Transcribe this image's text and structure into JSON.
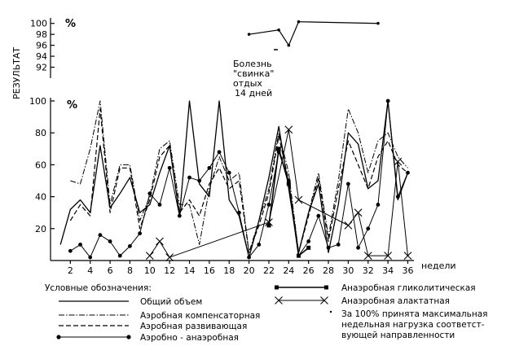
{
  "chart_data": [
    {
      "type": "line",
      "panel": "result",
      "ylabel": "РЕЗУЛЬТАТ",
      "unit": "%",
      "yticks": [
        92,
        94,
        96,
        98,
        100
      ],
      "ylim": [
        90,
        101
      ],
      "x": [
        20,
        23,
        24,
        25,
        33
      ],
      "values": [
        98,
        98.8,
        96,
        100.3,
        100
      ],
      "annotation": [
        "Болезнь",
        "\"свинка\"",
        "отдых",
        "14 дней"
      ]
    },
    {
      "type": "line",
      "panel": "load",
      "unit": "%",
      "xlabel": "недели",
      "xticks": [
        2,
        4,
        6,
        8,
        10,
        12,
        14,
        16,
        18,
        20,
        22,
        24,
        26,
        28,
        30,
        32,
        34,
        36
      ],
      "yticks": [
        20,
        40,
        60,
        80,
        100
      ],
      "xlim": [
        0,
        37
      ],
      "ylim": [
        0,
        102
      ],
      "series": [
        {
          "name": "Общий объем",
          "style": "solid",
          "x": [
            1,
            2,
            3,
            4,
            5,
            6,
            7,
            8,
            9,
            10,
            11,
            12,
            13,
            14,
            15,
            16,
            17,
            18,
            19,
            20,
            21,
            22,
            23,
            24,
            25,
            26,
            27,
            28,
            29,
            30,
            31,
            32,
            33,
            34,
            35,
            36
          ],
          "values": [
            10,
            32,
            38,
            30,
            72,
            33,
            42,
            52,
            30,
            35,
            55,
            72,
            28,
            100,
            48,
            40,
            100,
            38,
            28,
            2,
            25,
            52,
            84,
            45,
            5,
            30,
            48,
            5,
            35,
            80,
            73,
            45,
            50,
            100,
            38,
            55
          ]
        },
        {
          "name": "Аэробная компенсаторная",
          "style": "dashdot",
          "x": [
            1,
            2,
            3,
            4,
            5,
            6,
            7,
            8,
            9,
            10,
            11,
            12,
            13,
            14,
            15,
            16,
            17,
            18,
            19,
            20,
            21,
            22,
            23,
            24,
            25,
            26,
            27,
            28,
            29,
            30,
            31,
            32,
            33,
            34,
            35,
            36
          ],
          "values": [
            null,
            50,
            48,
            70,
            100,
            35,
            60,
            60,
            25,
            40,
            70,
            75,
            35,
            35,
            10,
            45,
            65,
            50,
            55,
            5,
            25,
            45,
            80,
            55,
            5,
            30,
            55,
            15,
            50,
            95,
            80,
            55,
            75,
            80,
            65,
            58
          ]
        },
        {
          "name": "Аэробная развивающая",
          "style": "dashed",
          "x": [
            1,
            2,
            3,
            4,
            5,
            6,
            7,
            8,
            9,
            10,
            11,
            12,
            13,
            14,
            15,
            16,
            17,
            18,
            19,
            20,
            21,
            22,
            23,
            24,
            25,
            26,
            27,
            28,
            29,
            30,
            31,
            32,
            33,
            34,
            35,
            36
          ],
          "values": [
            null,
            25,
            35,
            28,
            95,
            30,
            58,
            58,
            20,
            38,
            65,
            72,
            30,
            38,
            28,
            48,
            58,
            45,
            50,
            5,
            22,
            42,
            78,
            50,
            5,
            28,
            52,
            12,
            45,
            75,
            60,
            45,
            65,
            75,
            60,
            55
          ]
        },
        {
          "name": "Аэробно - анаэробная",
          "style": "solid-dot",
          "x": [
            2,
            3,
            4,
            5,
            6,
            7,
            8,
            9,
            10,
            11,
            12,
            13,
            14,
            15,
            16,
            17,
            18,
            19,
            20,
            21,
            22,
            23,
            24,
            25,
            26,
            27,
            28,
            29,
            30,
            31,
            32,
            33,
            34,
            35,
            36
          ],
          "values": [
            6,
            10,
            2,
            16,
            12,
            3,
            9,
            17,
            42,
            35,
            58,
            28,
            52,
            50,
            58,
            68,
            55,
            30,
            2,
            10,
            35,
            68,
            50,
            3,
            12,
            28,
            8,
            10,
            48,
            8,
            20,
            35,
            100,
            40,
            55
          ]
        },
        {
          "name": "Анаэробная гликолитическая",
          "style": "solid-square",
          "x": [
            22,
            23,
            24,
            25,
            26
          ],
          "values": [
            22,
            70,
            48,
            3,
            8
          ]
        },
        {
          "name": "Анаэробная алактатная",
          "style": "cross",
          "x": [
            10,
            11,
            12,
            22,
            24,
            25,
            30,
            31,
            32,
            34,
            35,
            36
          ],
          "values": [
            3,
            12,
            2,
            24,
            82,
            38,
            22,
            30,
            3,
            3,
            62,
            3
          ]
        }
      ],
      "legend_title": "Условные обозначения:",
      "note": [
        "За 100% принята максимальная",
        "недельная нагрузка соответст-",
        "вующей направленности"
      ]
    }
  ]
}
